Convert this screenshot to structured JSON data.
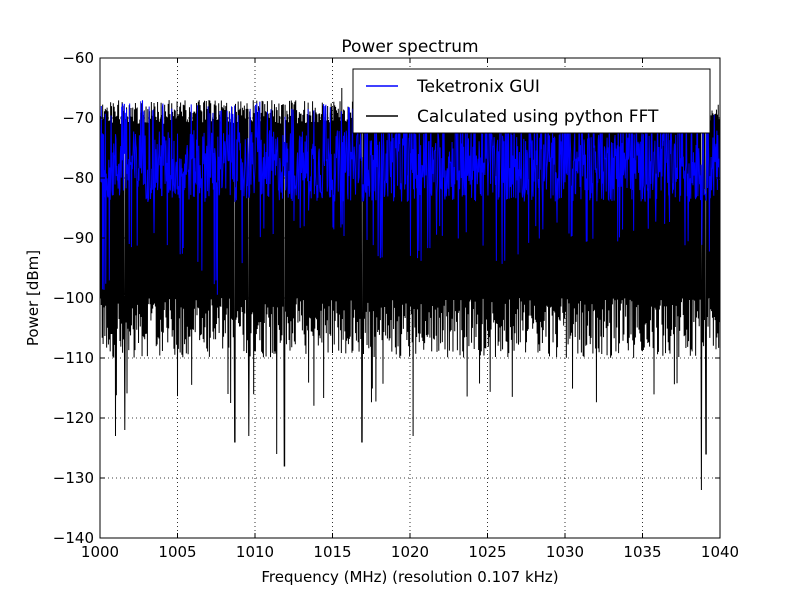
{
  "chart_data": {
    "type": "line",
    "title": "Power spectrum",
    "xlabel": "Frequency (MHz) (resolution 0.107 kHz)",
    "ylabel": "Power  [dBm]",
    "xlim": [
      1000,
      1040
    ],
    "ylim": [
      -140,
      -60
    ],
    "xticks": [
      1000,
      1005,
      1010,
      1015,
      1020,
      1025,
      1030,
      1035,
      1040
    ],
    "xtick_labels": [
      "1000",
      "1005",
      "1010",
      "1015",
      "1020",
      "1025",
      "1030",
      "1035",
      "1040"
    ],
    "yticks": [
      -60,
      -70,
      -80,
      -90,
      -100,
      -110,
      -120,
      -130,
      -140
    ],
    "ytick_labels": [
      "−60",
      "−70",
      "−80",
      "−90",
      "−100",
      "−110",
      "−120",
      "−130",
      "−140"
    ],
    "grid": true,
    "legend_position": "top-right",
    "series": [
      {
        "name": "Teketronix GUI",
        "color": "#0000ff",
        "band_min": -101,
        "band_max": -67,
        "typical": [
          -86,
          -70
        ],
        "envelope_x": [
          1000,
          1002,
          1004,
          1006,
          1008,
          1010,
          1012,
          1014,
          1016,
          1018,
          1020,
          1022,
          1024,
          1026,
          1028,
          1030,
          1032,
          1034,
          1036,
          1038,
          1040
        ],
        "envelope_min": [
          -101,
          -93,
          -91,
          -95,
          -101,
          -92,
          -89,
          -88,
          -90,
          -94,
          -96,
          -90,
          -92,
          -97,
          -91,
          -90,
          -93,
          -91,
          -89,
          -92,
          -94
        ],
        "envelope_max": [
          -68,
          -67,
          -67,
          -67,
          -68,
          -67,
          -68,
          -67,
          -67,
          -68,
          -68,
          -67,
          -68,
          -67,
          -68,
          -68,
          -68,
          -67,
          -68,
          -67,
          -68
        ]
      },
      {
        "name": "Calculated using python FFT",
        "color": "#000000",
        "band_min": -132,
        "band_max": -65,
        "typical": [
          -107,
          -67
        ],
        "spikes": [
          {
            "x": 1001.0,
            "y": -123
          },
          {
            "x": 1001.6,
            "y": -122
          },
          {
            "x": 1008.7,
            "y": -124
          },
          {
            "x": 1009.6,
            "y": -123
          },
          {
            "x": 1011.4,
            "y": -126
          },
          {
            "x": 1011.9,
            "y": -128
          },
          {
            "x": 1016.9,
            "y": -124
          },
          {
            "x": 1020.2,
            "y": -123
          },
          {
            "x": 1038.8,
            "y": -132
          },
          {
            "x": 1039.1,
            "y": -126
          },
          {
            "x": 1015.6,
            "y": -65
          }
        ]
      }
    ]
  }
}
